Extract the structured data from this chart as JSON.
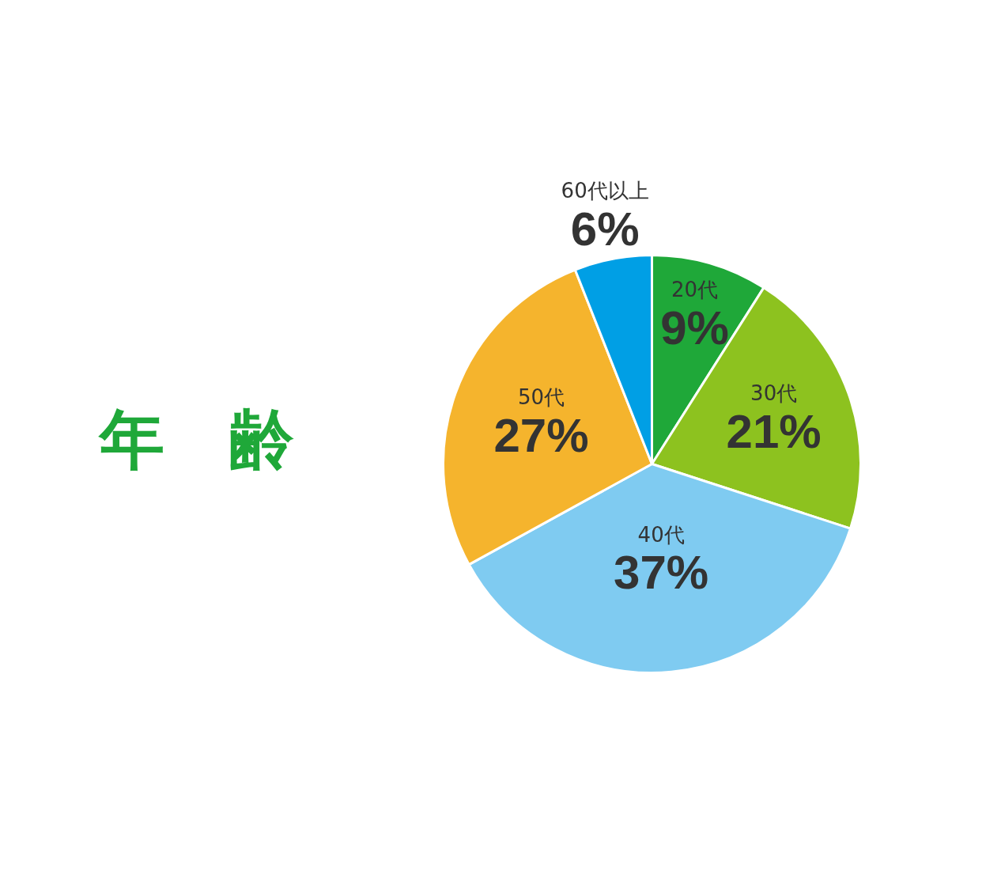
{
  "chart_data": {
    "type": "pie",
    "title": "年　齢",
    "categories": [
      "20代",
      "30代",
      "40代",
      "50代",
      "60代以上"
    ],
    "values": [
      9,
      21,
      37,
      27,
      6
    ],
    "colors": [
      "#1fa839",
      "#8dc21f",
      "#7fcbf1",
      "#f5b42d",
      "#009fe5"
    ],
    "value_labels": [
      "9%",
      "21%",
      "37%",
      "27%",
      "6%"
    ]
  }
}
